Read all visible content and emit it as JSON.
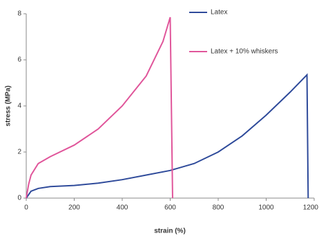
{
  "chart_data": {
    "type": "line",
    "xlabel": "strain (%)",
    "ylabel": "stress (MPa)",
    "xlim": [
      0,
      1200
    ],
    "xticks": [
      0,
      200,
      400,
      600,
      800,
      1000,
      1200
    ],
    "ylim": [
      0,
      8
    ],
    "yticks": [
      0,
      2,
      4,
      6,
      8
    ],
    "grid": false,
    "legend": "upper right",
    "series": [
      {
        "name": "Latex",
        "color": "#2e4a9a",
        "x": [
          0,
          20,
          50,
          100,
          200,
          300,
          400,
          500,
          600,
          700,
          800,
          900,
          1000,
          1100,
          1170,
          1175
        ],
        "values": [
          0,
          0.3,
          0.42,
          0.5,
          0.55,
          0.65,
          0.8,
          1.0,
          1.2,
          1.5,
          2.0,
          2.7,
          3.6,
          4.6,
          5.35,
          0
        ]
      },
      {
        "name": "Latex + 10% whiskers",
        "color": "#e0559a",
        "x": [
          0,
          10,
          20,
          50,
          100,
          200,
          300,
          400,
          500,
          570,
          600,
          610
        ],
        "values": [
          0,
          0.6,
          1.0,
          1.5,
          1.8,
          2.3,
          3.0,
          4.0,
          5.3,
          6.8,
          7.85,
          0
        ]
      }
    ]
  }
}
